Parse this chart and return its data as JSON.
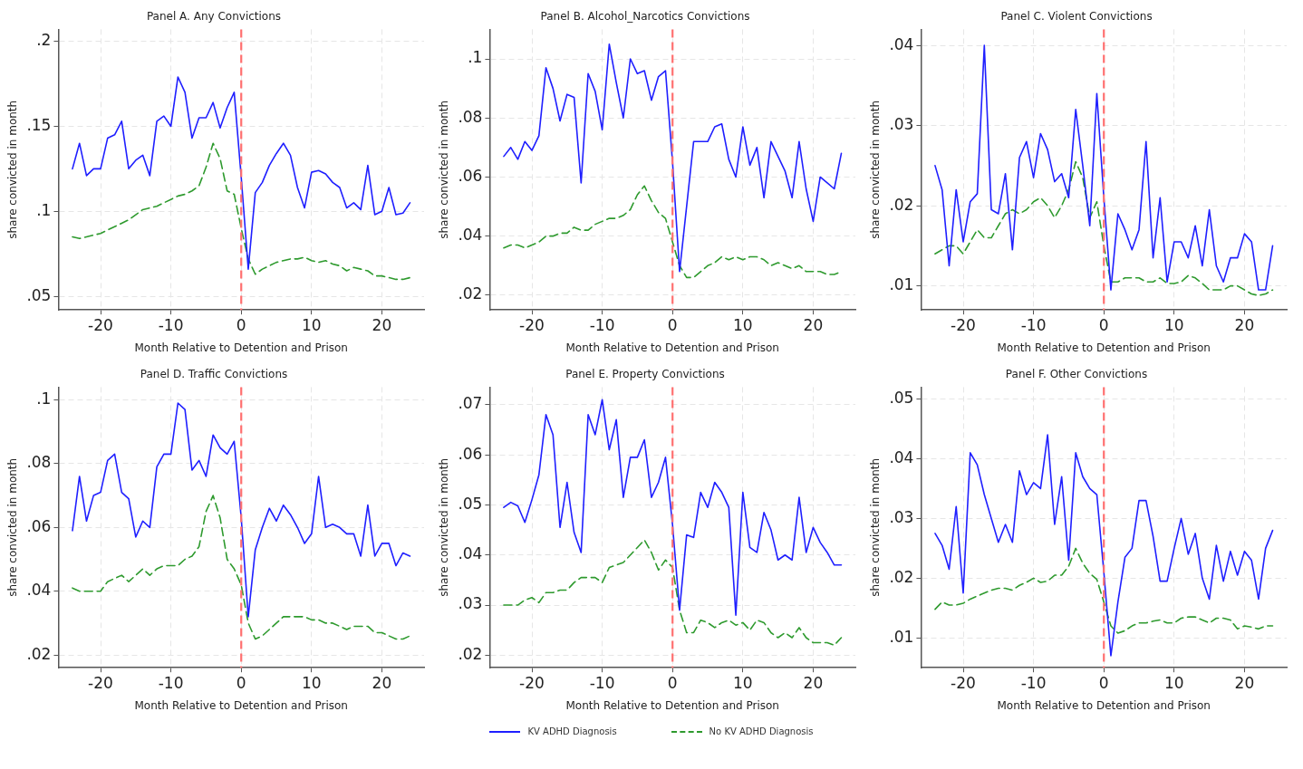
{
  "chart_data": [
    {
      "type": "line",
      "title": "Panel A. Any Convictions",
      "xlabel": "Month Relative to Detention and Prison",
      "ylabel": "share convicted in month",
      "grid": true,
      "legend": "bottom",
      "x": [
        -24,
        -23,
        -22,
        -21,
        -20,
        -19,
        -18,
        -17,
        -16,
        -15,
        -14,
        -13,
        -12,
        -11,
        -10,
        -9,
        -8,
        -7,
        -6,
        -5,
        -4,
        -3,
        -2,
        -1,
        0,
        1,
        2,
        3,
        4,
        5,
        6,
        7,
        8,
        9,
        10,
        11,
        12,
        13,
        14,
        15,
        16,
        17,
        18,
        19,
        20,
        21,
        22,
        23,
        24
      ],
      "xlim": [
        -26,
        26
      ],
      "xticks": [
        -20,
        -10,
        0,
        10,
        20
      ],
      "ylim": [
        0.042,
        0.207
      ],
      "yticks": [
        {
          "value": 0.05,
          "label": ".05"
        },
        {
          "value": 0.1,
          "label": ".1"
        },
        {
          "value": 0.15,
          "label": ".15"
        },
        {
          "value": 0.2,
          "label": ".2"
        }
      ],
      "ref_lines": [
        {
          "axis": "x",
          "value": 0,
          "color": "#ff7070",
          "line_style": "dashed"
        }
      ],
      "series": [
        {
          "name": "KV ADHD Diagnosis",
          "color": "#1f1fff",
          "line_style": "solid",
          "values": [
            0.125,
            0.14,
            0.121,
            0.125,
            0.125,
            0.143,
            0.145,
            0.153,
            0.125,
            0.13,
            0.133,
            0.121,
            0.153,
            0.156,
            0.15,
            0.179,
            0.17,
            0.143,
            0.155,
            0.155,
            0.164,
            0.149,
            0.161,
            0.17,
            0.12,
            0.066,
            0.111,
            0.117,
            0.127,
            0.134,
            0.14,
            0.133,
            0.114,
            0.102,
            0.123,
            0.124,
            0.122,
            0.117,
            0.114,
            0.102,
            0.105,
            0.101,
            0.127,
            0.098,
            0.1,
            0.114,
            0.098,
            0.099,
            0.105
          ]
        },
        {
          "name": "No KV ADHD Diagnosis",
          "color": "#2e9a2e",
          "line_style": "dashed",
          "values": [
            0.085,
            0.084,
            0.085,
            0.086,
            0.087,
            0.089,
            0.091,
            0.093,
            0.095,
            0.098,
            0.101,
            0.102,
            0.103,
            0.105,
            0.107,
            0.109,
            0.11,
            0.112,
            0.115,
            0.126,
            0.14,
            0.131,
            0.112,
            0.11,
            0.09,
            0.072,
            0.063,
            0.066,
            0.068,
            0.07,
            0.071,
            0.072,
            0.072,
            0.073,
            0.071,
            0.07,
            0.071,
            0.069,
            0.068,
            0.065,
            0.067,
            0.066,
            0.065,
            0.062,
            0.062,
            0.061,
            0.06,
            0.06,
            0.061
          ]
        }
      ]
    },
    {
      "type": "line",
      "title": "Panel B. Alcohol_Narcotics Convictions",
      "xlabel": "Month Relative to Detention and Prison",
      "ylabel": "share convicted in month",
      "grid": true,
      "x": [
        -24,
        -23,
        -22,
        -21,
        -20,
        -19,
        -18,
        -17,
        -16,
        -15,
        -14,
        -13,
        -12,
        -11,
        -10,
        -9,
        -8,
        -7,
        -6,
        -5,
        -4,
        -3,
        -2,
        -1,
        0,
        1,
        2,
        3,
        4,
        5,
        6,
        7,
        8,
        9,
        10,
        11,
        12,
        13,
        14,
        15,
        16,
        17,
        18,
        19,
        20,
        21,
        22,
        23,
        24
      ],
      "xlim": [
        -26,
        26
      ],
      "xticks": [
        -20,
        -10,
        0,
        10,
        20
      ],
      "ylim": [
        0.015,
        0.11
      ],
      "yticks": [
        {
          "value": 0.02,
          "label": ".02"
        },
        {
          "value": 0.04,
          "label": ".04"
        },
        {
          "value": 0.06,
          "label": ".06"
        },
        {
          "value": 0.08,
          "label": ".08"
        },
        {
          "value": 0.1,
          "label": ".1"
        }
      ],
      "ref_lines": [
        {
          "axis": "x",
          "value": 0,
          "color": "#ff7070",
          "line_style": "dashed"
        }
      ],
      "series": [
        {
          "color": "#1f1fff",
          "line_style": "solid",
          "values": [
            0.067,
            0.07,
            0.066,
            0.072,
            0.069,
            0.074,
            0.097,
            0.09,
            0.079,
            0.088,
            0.087,
            0.058,
            0.095,
            0.089,
            0.076,
            0.105,
            0.092,
            0.08,
            0.1,
            0.095,
            0.096,
            0.086,
            0.094,
            0.096,
            0.065,
            0.028,
            0.05,
            0.072,
            0.072,
            0.072,
            0.077,
            0.078,
            0.066,
            0.06,
            0.077,
            0.064,
            0.07,
            0.053,
            0.072,
            0.067,
            0.062,
            0.053,
            0.072,
            0.056,
            0.045,
            0.06,
            0.058,
            0.056,
            0.068
          ]
        },
        {
          "color": "#2e9a2e",
          "line_style": "dashed",
          "values": [
            0.036,
            0.037,
            0.037,
            0.036,
            0.037,
            0.038,
            0.04,
            0.04,
            0.041,
            0.041,
            0.043,
            0.042,
            0.042,
            0.044,
            0.045,
            0.046,
            0.046,
            0.047,
            0.049,
            0.054,
            0.057,
            0.052,
            0.048,
            0.046,
            0.038,
            0.03,
            0.026,
            0.026,
            0.028,
            0.03,
            0.031,
            0.033,
            0.032,
            0.033,
            0.032,
            0.033,
            0.033,
            0.032,
            0.03,
            0.031,
            0.03,
            0.029,
            0.03,
            0.028,
            0.028,
            0.028,
            0.027,
            0.027,
            0.028
          ]
        }
      ]
    },
    {
      "type": "line",
      "title": "Panel C. Violent Convictions",
      "xlabel": "Month Relative to Detention and Prison",
      "ylabel": "share convicted in month",
      "grid": true,
      "x": [
        -24,
        -23,
        -22,
        -21,
        -20,
        -19,
        -18,
        -17,
        -16,
        -15,
        -14,
        -13,
        -12,
        -11,
        -10,
        -9,
        -8,
        -7,
        -6,
        -5,
        -4,
        -3,
        -2,
        -1,
        0,
        1,
        2,
        3,
        4,
        5,
        6,
        7,
        8,
        9,
        10,
        11,
        12,
        13,
        14,
        15,
        16,
        17,
        18,
        19,
        20,
        21,
        22,
        23,
        24
      ],
      "xlim": [
        -26,
        26
      ],
      "xticks": [
        -20,
        -10,
        0,
        10,
        20
      ],
      "ylim": [
        0.007,
        0.042
      ],
      "yticks": [
        {
          "value": 0.01,
          "label": ".01"
        },
        {
          "value": 0.02,
          "label": ".02"
        },
        {
          "value": 0.03,
          "label": ".03"
        },
        {
          "value": 0.04,
          "label": ".04"
        }
      ],
      "ref_lines": [
        {
          "axis": "x",
          "value": 0,
          "color": "#ff7070",
          "line_style": "dashed"
        }
      ],
      "series": [
        {
          "color": "#1f1fff",
          "line_style": "solid",
          "values": [
            0.025,
            0.022,
            0.0125,
            0.022,
            0.0155,
            0.0205,
            0.0215,
            0.04,
            0.0195,
            0.019,
            0.024,
            0.0145,
            0.026,
            0.028,
            0.0235,
            0.029,
            0.027,
            0.023,
            0.024,
            0.021,
            0.032,
            0.025,
            0.0175,
            0.034,
            0.021,
            0.0095,
            0.019,
            0.017,
            0.0145,
            0.017,
            0.028,
            0.0135,
            0.021,
            0.0105,
            0.0155,
            0.0155,
            0.0135,
            0.0175,
            0.0125,
            0.0195,
            0.0125,
            0.0105,
            0.0135,
            0.0135,
            0.0165,
            0.0155,
            0.0095,
            0.0095,
            0.015
          ]
        },
        {
          "color": "#2e9a2e",
          "line_style": "dashed",
          "values": [
            0.014,
            0.0145,
            0.015,
            0.015,
            0.014,
            0.0155,
            0.017,
            0.016,
            0.016,
            0.0175,
            0.019,
            0.0195,
            0.019,
            0.0195,
            0.0205,
            0.021,
            0.02,
            0.0185,
            0.02,
            0.022,
            0.0255,
            0.0235,
            0.0185,
            0.0205,
            0.015,
            0.0105,
            0.0105,
            0.011,
            0.011,
            0.011,
            0.0105,
            0.0105,
            0.011,
            0.0103,
            0.0103,
            0.0105,
            0.0113,
            0.011,
            0.0103,
            0.0095,
            0.0095,
            0.0095,
            0.01,
            0.01,
            0.0095,
            0.009,
            0.0088,
            0.009,
            0.0095
          ]
        }
      ]
    },
    {
      "type": "line",
      "title": "Panel D. Traffic Convictions",
      "xlabel": "Month Relative to Detention and Prison",
      "ylabel": "share convicted in month",
      "grid": true,
      "x": [
        -24,
        -23,
        -22,
        -21,
        -20,
        -19,
        -18,
        -17,
        -16,
        -15,
        -14,
        -13,
        -12,
        -11,
        -10,
        -9,
        -8,
        -7,
        -6,
        -5,
        -4,
        -3,
        -2,
        -1,
        0,
        1,
        2,
        3,
        4,
        5,
        6,
        7,
        8,
        9,
        10,
        11,
        12,
        13,
        14,
        15,
        16,
        17,
        18,
        19,
        20,
        21,
        22,
        23,
        24
      ],
      "xlim": [
        -26,
        26
      ],
      "xticks": [
        -20,
        -10,
        0,
        10,
        20
      ],
      "ylim": [
        0.016,
        0.104
      ],
      "yticks": [
        {
          "value": 0.02,
          "label": ".02"
        },
        {
          "value": 0.04,
          "label": ".04"
        },
        {
          "value": 0.06,
          "label": ".06"
        },
        {
          "value": 0.08,
          "label": ".08"
        },
        {
          "value": 0.1,
          "label": ".1"
        }
      ],
      "ref_lines": [
        {
          "axis": "x",
          "value": 0,
          "color": "#ff7070",
          "line_style": "dashed"
        }
      ],
      "series": [
        {
          "color": "#1f1fff",
          "line_style": "solid",
          "values": [
            0.059,
            0.076,
            0.062,
            0.07,
            0.071,
            0.081,
            0.083,
            0.071,
            0.069,
            0.057,
            0.062,
            0.06,
            0.079,
            0.083,
            0.083,
            0.099,
            0.097,
            0.078,
            0.081,
            0.076,
            0.089,
            0.085,
            0.083,
            0.087,
            0.063,
            0.032,
            0.053,
            0.06,
            0.066,
            0.062,
            0.067,
            0.064,
            0.06,
            0.055,
            0.058,
            0.076,
            0.06,
            0.061,
            0.06,
            0.058,
            0.058,
            0.051,
            0.067,
            0.051,
            0.055,
            0.055,
            0.048,
            0.052,
            0.051
          ]
        },
        {
          "color": "#2e9a2e",
          "line_style": "dashed",
          "values": [
            0.041,
            0.04,
            0.04,
            0.04,
            0.04,
            0.043,
            0.044,
            0.045,
            0.043,
            0.045,
            0.047,
            0.045,
            0.047,
            0.048,
            0.048,
            0.048,
            0.05,
            0.051,
            0.054,
            0.065,
            0.07,
            0.063,
            0.05,
            0.047,
            0.042,
            0.03,
            0.025,
            0.026,
            0.028,
            0.03,
            0.032,
            0.032,
            0.032,
            0.032,
            0.031,
            0.031,
            0.03,
            0.03,
            0.029,
            0.028,
            0.029,
            0.029,
            0.029,
            0.027,
            0.027,
            0.026,
            0.025,
            0.025,
            0.026
          ]
        }
      ]
    },
    {
      "type": "line",
      "title": "Panel E. Property Convictions",
      "xlabel": "Month Relative to Detention and Prison",
      "ylabel": "share convicted in month",
      "grid": true,
      "x": [
        -24,
        -23,
        -22,
        -21,
        -20,
        -19,
        -18,
        -17,
        -16,
        -15,
        -14,
        -13,
        -12,
        -11,
        -10,
        -9,
        -8,
        -7,
        -6,
        -5,
        -4,
        -3,
        -2,
        -1,
        0,
        1,
        2,
        3,
        4,
        5,
        6,
        7,
        8,
        9,
        10,
        11,
        12,
        13,
        14,
        15,
        16,
        17,
        18,
        19,
        20,
        21,
        22,
        23,
        24
      ],
      "xlim": [
        -26,
        26
      ],
      "xticks": [
        -20,
        -10,
        0,
        10,
        20
      ],
      "ylim": [
        0.0175,
        0.0735
      ],
      "yticks": [
        {
          "value": 0.02,
          "label": ".02"
        },
        {
          "value": 0.03,
          "label": ".03"
        },
        {
          "value": 0.04,
          "label": ".04"
        },
        {
          "value": 0.05,
          "label": ".05"
        },
        {
          "value": 0.06,
          "label": ".06"
        },
        {
          "value": 0.07,
          "label": ".07"
        }
      ],
      "ref_lines": [
        {
          "axis": "x",
          "value": 0,
          "color": "#ff7070",
          "line_style": "dashed"
        }
      ],
      "series": [
        {
          "color": "#1f1fff",
          "line_style": "solid",
          "values": [
            0.0495,
            0.0505,
            0.0498,
            0.0465,
            0.051,
            0.056,
            0.068,
            0.064,
            0.0455,
            0.0545,
            0.0445,
            0.0405,
            0.068,
            0.064,
            0.071,
            0.061,
            0.067,
            0.0515,
            0.0595,
            0.0595,
            0.063,
            0.0515,
            0.0545,
            0.0595,
            0.046,
            0.029,
            0.044,
            0.0435,
            0.0525,
            0.0495,
            0.0545,
            0.0525,
            0.0495,
            0.028,
            0.0525,
            0.0415,
            0.0405,
            0.0485,
            0.045,
            0.039,
            0.04,
            0.039,
            0.0515,
            0.0405,
            0.0455,
            0.0425,
            0.0405,
            0.038,
            0.038
          ]
        },
        {
          "color": "#2e9a2e",
          "line_style": "dashed",
          "values": [
            0.03,
            0.03,
            0.03,
            0.031,
            0.0315,
            0.0305,
            0.0325,
            0.0325,
            0.033,
            0.033,
            0.0345,
            0.0355,
            0.0355,
            0.0355,
            0.0345,
            0.0375,
            0.038,
            0.0385,
            0.04,
            0.0415,
            0.043,
            0.0405,
            0.037,
            0.039,
            0.0375,
            0.029,
            0.0245,
            0.0245,
            0.027,
            0.0265,
            0.0255,
            0.0265,
            0.027,
            0.026,
            0.0265,
            0.025,
            0.027,
            0.0265,
            0.0245,
            0.0235,
            0.0245,
            0.0235,
            0.0255,
            0.0235,
            0.0225,
            0.0225,
            0.0225,
            0.022,
            0.0235
          ]
        }
      ]
    },
    {
      "type": "line",
      "title": "Panel F. Other Convictions",
      "xlabel": "Month Relative to Detention and Prison",
      "ylabel": "share convicted in month",
      "grid": true,
      "x": [
        -24,
        -23,
        -22,
        -21,
        -20,
        -19,
        -18,
        -17,
        -16,
        -15,
        -14,
        -13,
        -12,
        -11,
        -10,
        -9,
        -8,
        -7,
        -6,
        -5,
        -4,
        -3,
        -2,
        -1,
        0,
        1,
        2,
        3,
        4,
        5,
        6,
        7,
        8,
        9,
        10,
        11,
        12,
        13,
        14,
        15,
        16,
        17,
        18,
        19,
        20,
        21,
        22,
        23,
        24
      ],
      "xlim": [
        -26,
        26
      ],
      "xticks": [
        -20,
        -10,
        0,
        10,
        20
      ],
      "ylim": [
        0.005,
        0.052
      ],
      "yticks": [
        {
          "value": 0.01,
          "label": ".01"
        },
        {
          "value": 0.02,
          "label": ".02"
        },
        {
          "value": 0.03,
          "label": ".03"
        },
        {
          "value": 0.04,
          "label": ".04"
        },
        {
          "value": 0.05,
          "label": ".05"
        }
      ],
      "ref_lines": [
        {
          "axis": "x",
          "value": 0,
          "color": "#ff7070",
          "line_style": "dashed"
        }
      ],
      "series": [
        {
          "color": "#1f1fff",
          "line_style": "solid",
          "values": [
            0.0275,
            0.0255,
            0.0215,
            0.032,
            0.0175,
            0.041,
            0.039,
            0.034,
            0.03,
            0.026,
            0.029,
            0.026,
            0.038,
            0.034,
            0.036,
            0.035,
            0.044,
            0.029,
            0.037,
            0.023,
            0.041,
            0.037,
            0.035,
            0.034,
            0.021,
            0.007,
            0.016,
            0.0235,
            0.025,
            0.033,
            0.033,
            0.027,
            0.0195,
            0.0195,
            0.025,
            0.03,
            0.024,
            0.0275,
            0.02,
            0.0165,
            0.0255,
            0.0195,
            0.0245,
            0.0205,
            0.0245,
            0.023,
            0.0165,
            0.025,
            0.028
          ]
        },
        {
          "color": "#2e9a2e",
          "line_style": "dashed",
          "values": [
            0.0148,
            0.016,
            0.0155,
            0.0155,
            0.0158,
            0.0165,
            0.017,
            0.0175,
            0.018,
            0.0183,
            0.0183,
            0.018,
            0.0188,
            0.0193,
            0.02,
            0.0193,
            0.0195,
            0.0205,
            0.0205,
            0.022,
            0.025,
            0.0225,
            0.0208,
            0.0198,
            0.016,
            0.012,
            0.0108,
            0.0112,
            0.012,
            0.0125,
            0.0125,
            0.0128,
            0.013,
            0.0125,
            0.0125,
            0.0133,
            0.0135,
            0.0135,
            0.013,
            0.0125,
            0.0133,
            0.0133,
            0.013,
            0.0115,
            0.012,
            0.0118,
            0.0115,
            0.012,
            0.012
          ]
        }
      ]
    }
  ]
}
